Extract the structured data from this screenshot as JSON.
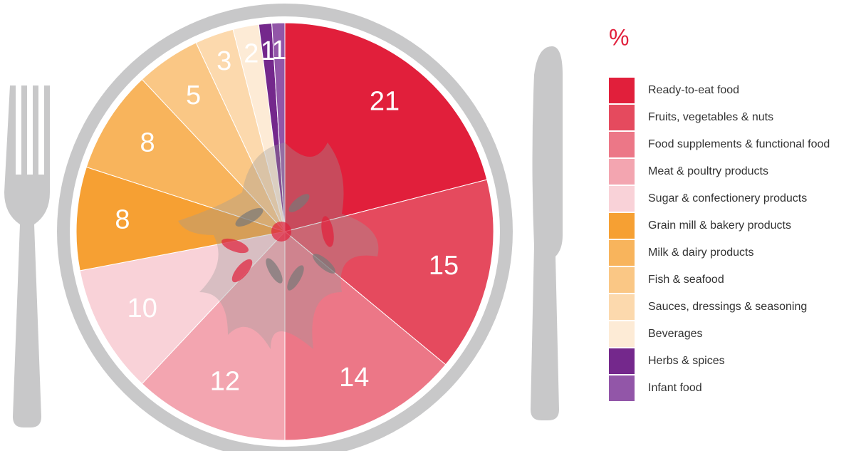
{
  "chart_data": {
    "type": "pie",
    "title": "%",
    "categories": [
      "Ready-to-eat food",
      "Fruits, vegetables & nuts",
      "Food supplements & functional food",
      "Meat & poultry products",
      "Sugar & confectionery products",
      "Grain mill & bakery products",
      "Milk & dairy products",
      "Fish & seafood",
      "Sauces, dressings & seasoning",
      "Beverages",
      "Herbs & spices",
      "Infant food"
    ],
    "values": [
      21,
      15,
      14,
      12,
      10,
      8,
      8,
      5,
      3,
      2,
      1,
      1
    ],
    "colors": [
      "#e11f3b",
      "#e54a5e",
      "#ec7787",
      "#f3a5b0",
      "#f9d2d8",
      "#f6a033",
      "#f8b45c",
      "#fac785",
      "#fcd9ad",
      "#fdebd6",
      "#74288c",
      "#9256a8"
    ],
    "legend": "right"
  }
}
